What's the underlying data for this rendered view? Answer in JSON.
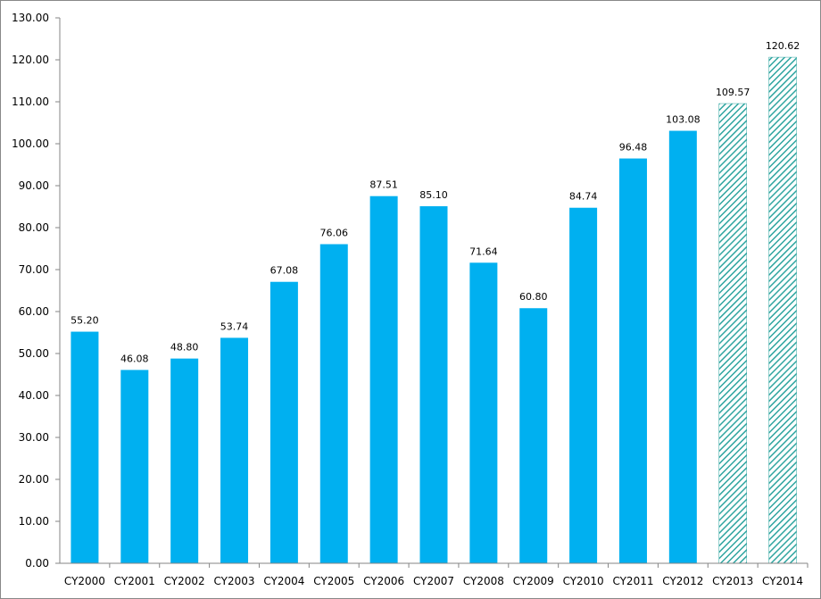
{
  "chart_data": {
    "type": "bar",
    "title": "",
    "xlabel": "",
    "ylabel": "",
    "ylim": [
      0,
      130
    ],
    "yticks": [
      "0.00",
      "10.00",
      "20.00",
      "30.00",
      "40.00",
      "50.00",
      "60.00",
      "70.00",
      "80.00",
      "90.00",
      "100.00",
      "110.00",
      "120.00",
      "130.00"
    ],
    "categories": [
      "CY2000",
      "CY2001",
      "CY2002",
      "CY2003",
      "CY2004",
      "CY2005",
      "CY2006",
      "CY2007",
      "CY2008",
      "CY2009",
      "CY2010",
      "CY2011",
      "CY2012",
      "CY2013",
      "CY2014"
    ],
    "values": [
      55.2,
      46.08,
      48.8,
      53.74,
      67.08,
      76.06,
      87.51,
      85.1,
      71.64,
      60.8,
      84.74,
      96.48,
      103.08,
      109.57,
      120.62
    ],
    "value_labels": [
      "55.20",
      "46.08",
      "48.80",
      "53.74",
      "67.08",
      "76.06",
      "87.51",
      "85.10",
      "71.64",
      "60.80",
      "84.74",
      "96.48",
      "103.08",
      "109.57",
      "120.62"
    ],
    "estimated": [
      false,
      false,
      false,
      false,
      false,
      false,
      false,
      false,
      false,
      false,
      false,
      false,
      false,
      true,
      true
    ],
    "grid": false,
    "legend": "none",
    "colors": {
      "bar": "#00b0f0",
      "hatch": "#2fa5a0",
      "axis": "#868686"
    }
  }
}
